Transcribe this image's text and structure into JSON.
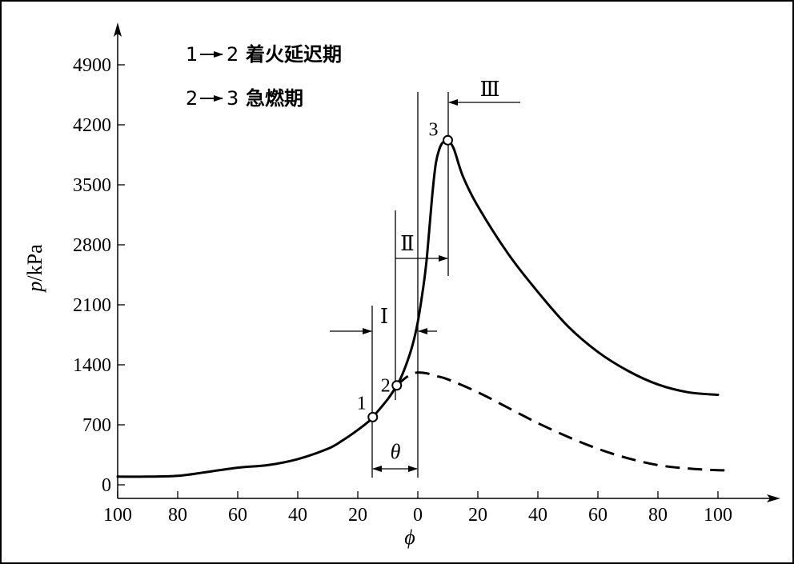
{
  "chart_data": {
    "type": "line",
    "ylabel_var": "p",
    "ylabel_unit": "/kPa",
    "xlabel": "ϕ",
    "y_ticks": [
      "0",
      "700",
      "1400",
      "2100",
      "2800",
      "3500",
      "4200",
      "4900"
    ],
    "x_ticks": [
      "100",
      "80",
      "60",
      "40",
      "20",
      "0",
      "20",
      "40",
      "60",
      "80",
      "100"
    ],
    "ylim": [
      0,
      5500
    ],
    "xlim": [
      -100,
      120
    ],
    "grid": false,
    "legend": [
      {
        "from": "1",
        "to": "2",
        "label": "着火延迟期"
      },
      {
        "from": "2",
        "to": "3",
        "label": "急燃期"
      }
    ],
    "series": [
      {
        "style": "solid",
        "x": [
          -100,
          -90,
          -80,
          -70,
          -60,
          -50,
          -40,
          -30,
          -25,
          -20,
          -16,
          -15,
          -10,
          -7,
          -5,
          -2,
          0,
          2,
          3,
          4,
          5,
          6,
          7,
          8,
          9,
          10,
          12,
          15,
          20,
          30,
          40,
          50,
          60,
          70,
          80,
          90,
          100
        ],
        "y": [
          95,
          95,
          105,
          150,
          200,
          230,
          300,
          420,
          520,
          640,
          750,
          790,
          1000,
          1160,
          1300,
          1600,
          1900,
          2350,
          2650,
          3050,
          3450,
          3750,
          3900,
          3980,
          4010,
          4020,
          3920,
          3600,
          3250,
          2700,
          2250,
          1850,
          1550,
          1330,
          1170,
          1080,
          1050
        ]
      },
      {
        "style": "dashed",
        "x": [
          -7,
          -4,
          -2,
          0,
          3,
          6,
          10,
          20,
          30,
          40,
          50,
          60,
          70,
          80,
          90,
          100,
          103
        ],
        "y": [
          1160,
          1250,
          1290,
          1310,
          1300,
          1270,
          1230,
          1080,
          900,
          720,
          560,
          420,
          310,
          230,
          190,
          170,
          170
        ]
      }
    ],
    "points": [
      {
        "label": "1",
        "x": -15,
        "y": 790
      },
      {
        "label": "2",
        "x": -7,
        "y": 1160
      },
      {
        "label": "3",
        "x": 10,
        "y": 4020
      }
    ],
    "annotations": {
      "phase_1": "Ⅰ",
      "phase_2": "Ⅱ",
      "phase_3": "Ⅲ",
      "theta": "θ"
    }
  }
}
